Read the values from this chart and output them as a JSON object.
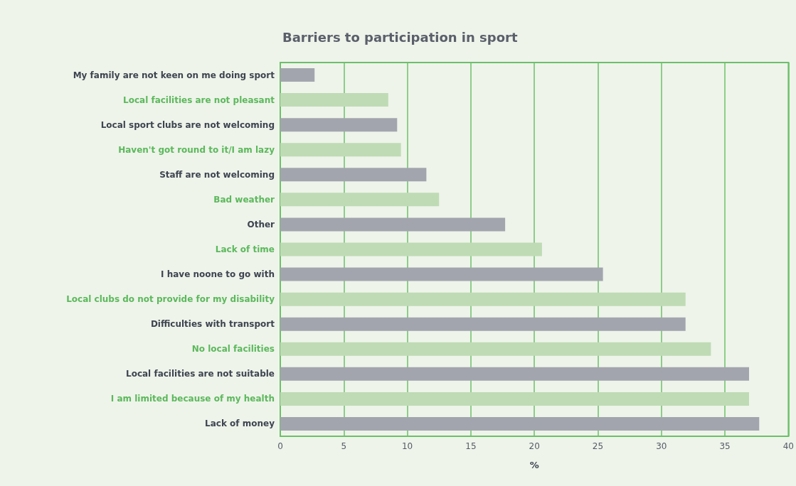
{
  "chart_data": {
    "type": "bar",
    "orientation": "horizontal",
    "title": "Barriers to participation in sport",
    "xlabel": "%",
    "categories": [
      "My family are not keen on me doing sport",
      "Local facilities are not pleasant",
      "Local sport clubs are not welcoming",
      "Haven't got round to it/I am lazy",
      "Staff are not welcoming",
      "Bad weather",
      "Other",
      "Lack of time",
      "I have noone to go with",
      "Local clubs do not provide for my disability",
      "Difficulties with transport",
      "No local facilities",
      "Local facilities are not suitable",
      "I am limited because of my health",
      "Lack of money"
    ],
    "values": [
      2.7,
      8.5,
      9.2,
      9.5,
      11.5,
      12.5,
      17.7,
      20.6,
      25.4,
      31.9,
      31.9,
      33.9,
      36.9,
      36.9,
      37.7
    ],
    "colors": [
      "#a3a5ae",
      "#bfdbb5",
      "#a3a5ae",
      "#bfdbb5",
      "#a3a5ae",
      "#bfdbb5",
      "#a3a5ae",
      "#bfdbb5",
      "#a3a5ae",
      "#bfdbb5",
      "#a3a5ae",
      "#bfdbb5",
      "#a3a5ae",
      "#bfdbb5",
      "#a3a5ae"
    ],
    "xlim": [
      0,
      40
    ],
    "xticks": [
      0,
      5,
      10,
      15,
      20,
      25,
      30,
      35,
      40
    ],
    "grid": "x"
  }
}
